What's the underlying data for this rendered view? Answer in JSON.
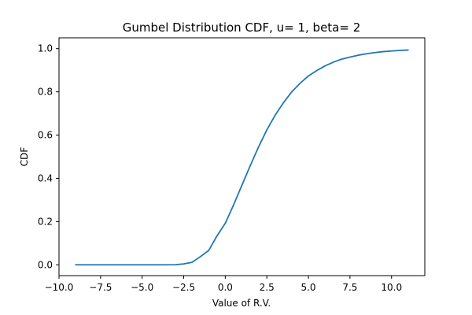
{
  "chart_data": {
    "type": "line",
    "title": "Gumbel Distribution CDF, u= 1, beta= 2",
    "xlabel": "Value of R.V.",
    "ylabel": "CDF",
    "xlim": [
      -10.0,
      12.0
    ],
    "ylim": [
      -0.05,
      1.05
    ],
    "xticks": [
      -10.0,
      -7.5,
      -5.0,
      -2.5,
      0.0,
      2.5,
      5.0,
      7.5,
      10.0
    ],
    "xtick_labels": [
      "−10.0",
      "−7.5",
      "−5.0",
      "−2.5",
      "0.0",
      "2.5",
      "5.0",
      "7.5",
      "10.0"
    ],
    "yticks": [
      0.0,
      0.2,
      0.4,
      0.6,
      0.8,
      1.0
    ],
    "ytick_labels": [
      "0.0",
      "0.2",
      "0.4",
      "0.6",
      "0.8",
      "1.0"
    ],
    "grid": false,
    "series": [
      {
        "name": "Gumbel CDF",
        "color": "#1f77b4",
        "x": [
          -9,
          -8,
          -7,
          -6,
          -5,
          -4,
          -3,
          -2.5,
          -2,
          -1.5,
          -1,
          -0.5,
          0,
          0.5,
          1,
          1.5,
          2,
          2.5,
          3,
          3.5,
          4,
          4.5,
          5,
          5.5,
          6,
          6.5,
          7,
          7.5,
          8,
          8.5,
          9,
          9.5,
          10,
          10.5,
          11
        ],
        "y": [
          0.0,
          0.0,
          0.0,
          0.0,
          0.0,
          0.0,
          0.0006,
          0.0041,
          0.0114,
          0.0376,
          0.066,
          0.1336,
          0.1923,
          0.2769,
          0.3679,
          0.4584,
          0.5452,
          0.6236,
          0.6922,
          0.75,
          0.8,
          0.8397,
          0.8734,
          0.8983,
          0.92,
          0.9373,
          0.9514,
          0.9608,
          0.9696,
          0.9761,
          0.9817,
          0.986,
          0.9889,
          0.9917,
          0.9933
        ]
      }
    ]
  }
}
